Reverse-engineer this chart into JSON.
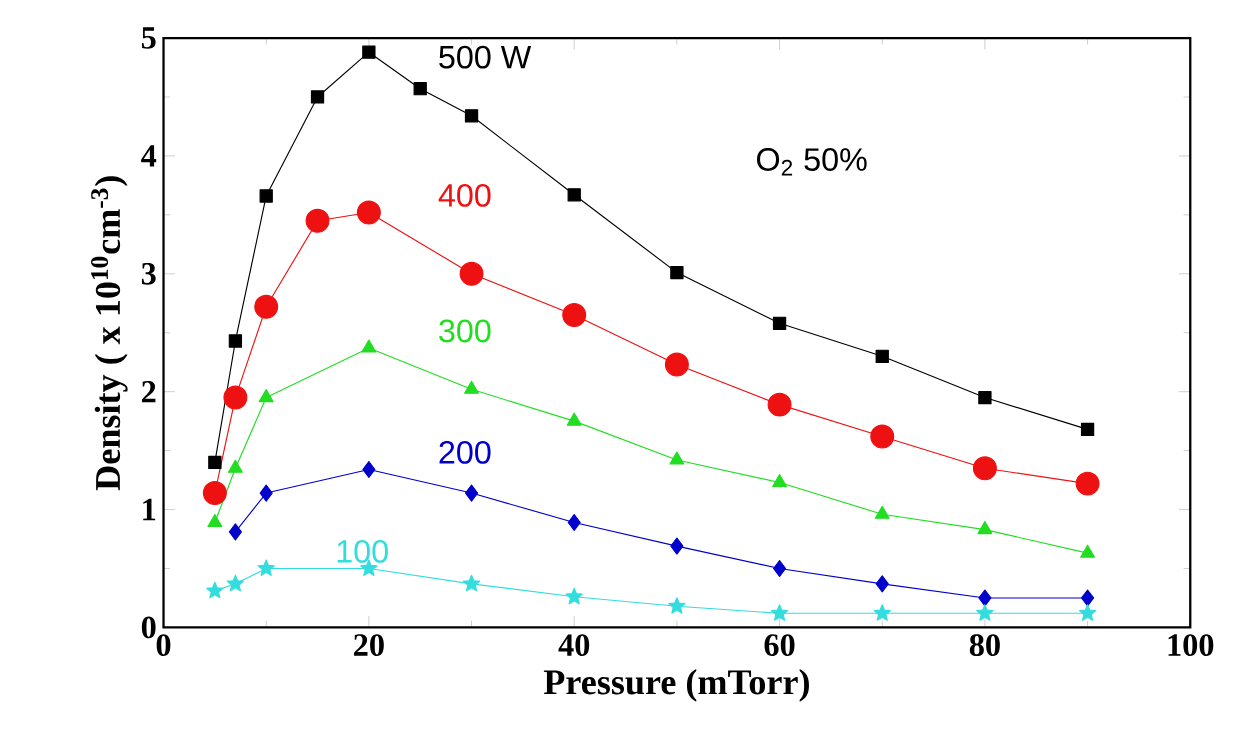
{
  "chart_data": {
    "type": "line",
    "xlabel": "Pressure (mTorr)",
    "ylabel": "Density ( x 10$^{10}$cm$^{-3}$)",
    "annotations": [
      "O$_{2}$ 50%"
    ],
    "x": [
      5,
      7,
      10,
      15,
      20,
      25,
      30,
      40,
      50,
      60,
      70,
      80,
      90
    ],
    "xlim": [
      0,
      100
    ],
    "ylim": [
      0,
      5
    ],
    "xticks": [
      0,
      20,
      40,
      60,
      80,
      100
    ],
    "yticks": [
      0,
      1,
      2,
      3,
      4,
      5
    ],
    "grid": false,
    "series": [
      {
        "name": "500 W",
        "color": "#000000",
        "marker": "square",
        "values": [
          1.4,
          2.43,
          3.66,
          4.5,
          4.88,
          4.57,
          4.34,
          3.67,
          3.01,
          2.58,
          2.3,
          1.95,
          1.68
        ]
      },
      {
        "name": "400",
        "color": "#ee1111",
        "marker": "circle",
        "x": [
          5,
          7,
          10,
          15,
          20,
          30,
          40,
          50,
          60,
          70,
          80,
          90
        ],
        "values": [
          1.14,
          1.95,
          2.72,
          3.45,
          3.52,
          3.0,
          2.65,
          2.23,
          1.89,
          1.62,
          1.35,
          1.22
        ]
      },
      {
        "name": "300",
        "color": "#22dd22",
        "marker": "triangle",
        "x": [
          5,
          7,
          10,
          20,
          30,
          40,
          50,
          60,
          70,
          80,
          90
        ],
        "values": [
          0.89,
          1.35,
          1.95,
          2.37,
          2.02,
          1.75,
          1.42,
          1.23,
          0.96,
          0.83,
          0.63
        ]
      },
      {
        "name": "200",
        "color": "#0000cc",
        "marker": "diamond",
        "x": [
          7,
          10,
          20,
          30,
          40,
          50,
          60,
          70,
          80,
          90
        ],
        "values": [
          0.81,
          1.14,
          1.34,
          1.14,
          0.89,
          0.69,
          0.5,
          0.37,
          0.25,
          0.25
        ]
      },
      {
        "name": "100",
        "color": "#33dddd",
        "marker": "star",
        "x": [
          5,
          7,
          10,
          20,
          30,
          40,
          50,
          60,
          70,
          80,
          90
        ],
        "values": [
          0.31,
          0.37,
          0.5,
          0.5,
          0.37,
          0.26,
          0.18,
          0.12,
          0.12,
          0.12,
          0.12
        ]
      }
    ]
  }
}
